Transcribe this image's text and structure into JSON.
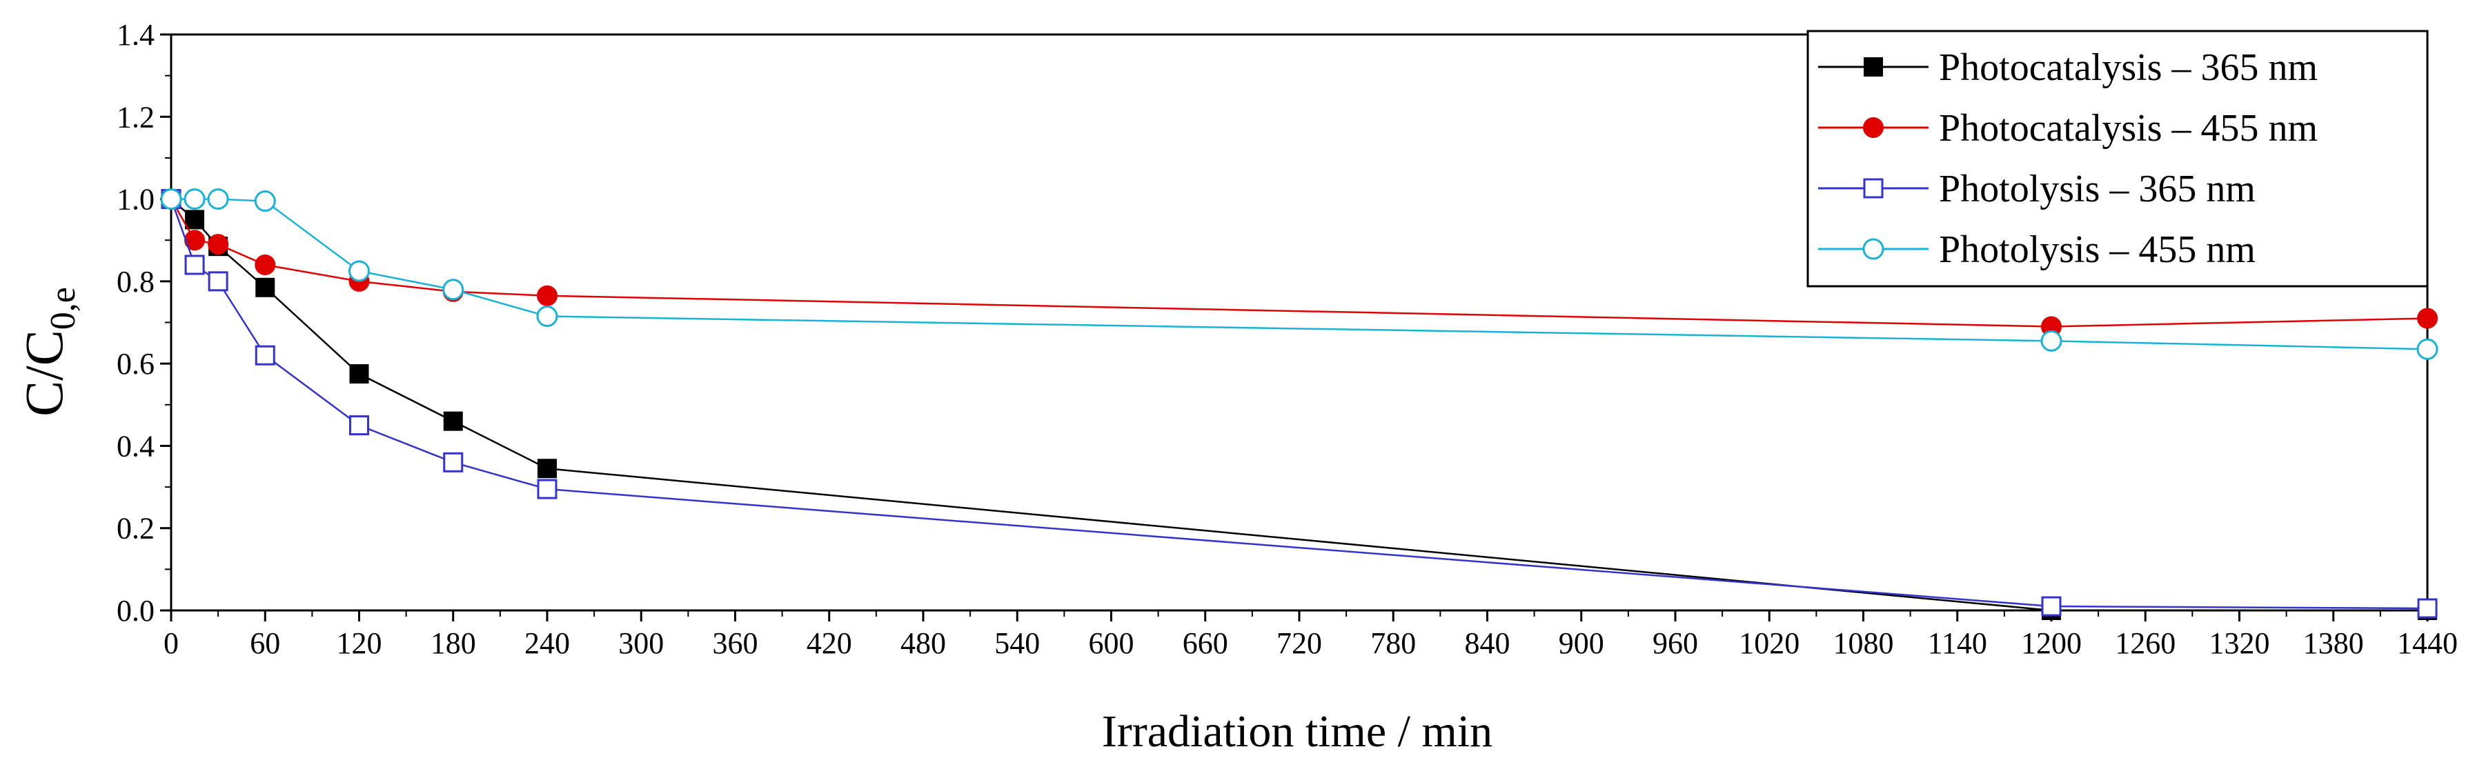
{
  "chart_data": {
    "type": "line",
    "title": "",
    "xlabel": "Irradiation time / min",
    "ylabel": {
      "main": "C/C",
      "subscript": "0,e"
    },
    "xlim": [
      0,
      1440
    ],
    "ylim": [
      0,
      1.4
    ],
    "x_ticks": [
      0,
      60,
      120,
      180,
      240,
      300,
      360,
      420,
      480,
      540,
      600,
      660,
      720,
      780,
      840,
      900,
      960,
      1020,
      1080,
      1140,
      1200,
      1260,
      1320,
      1380,
      1440
    ],
    "y_ticks": [
      0.0,
      0.2,
      0.4,
      0.6,
      0.8,
      1.0,
      1.2,
      1.4
    ],
    "y_tick_labels": [
      "0.0",
      "0.2",
      "0.4",
      "0.6",
      "0.8",
      "1.0",
      "1.2",
      "1.4"
    ],
    "grid": false,
    "legend_position": "top-right",
    "series": [
      {
        "name": "Photocatalysis – 365 nm",
        "color": "#000000",
        "marker": "square-filled",
        "x": [
          0,
          15,
          30,
          60,
          120,
          180,
          240,
          1200,
          1440
        ],
        "y": [
          1.0,
          0.95,
          0.885,
          0.785,
          0.575,
          0.46,
          0.345,
          0.0,
          0.0
        ]
      },
      {
        "name": "Photocatalysis – 455 nm",
        "color": "#e00000",
        "marker": "circle-filled",
        "x": [
          0,
          15,
          30,
          60,
          120,
          180,
          240,
          1200,
          1440
        ],
        "y": [
          1.0,
          0.9,
          0.89,
          0.84,
          0.8,
          0.775,
          0.765,
          0.69,
          0.71
        ]
      },
      {
        "name": "Photolysis – 365 nm",
        "color": "#3333cc",
        "marker": "square-open",
        "x": [
          0,
          15,
          30,
          60,
          120,
          180,
          240,
          1200,
          1440
        ],
        "y": [
          1.0,
          0.84,
          0.8,
          0.62,
          0.45,
          0.36,
          0.295,
          0.01,
          0.005
        ]
      },
      {
        "name": "Photolysis – 455 nm",
        "color": "#17b2d6",
        "marker": "circle-open",
        "x": [
          0,
          15,
          30,
          60,
          120,
          180,
          240,
          1200,
          1440
        ],
        "y": [
          1.0,
          1.0,
          1.0,
          0.995,
          0.825,
          0.78,
          0.715,
          0.655,
          0.635
        ]
      }
    ]
  }
}
